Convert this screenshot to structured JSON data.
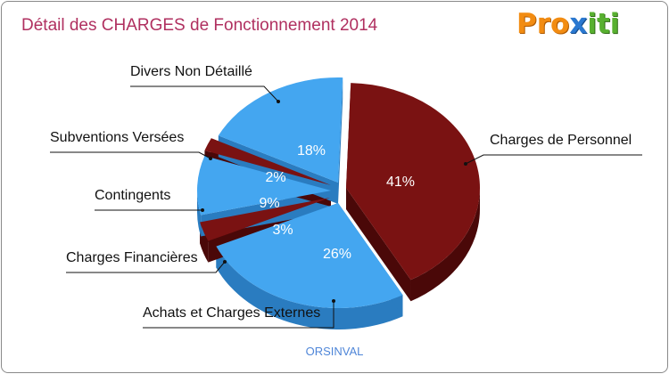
{
  "header": {
    "title": "Détail des CHARGES de Fonctionnement 2014"
  },
  "logo": {
    "p1": "Pro",
    "p2": "x",
    "p3": "iti"
  },
  "footer": {
    "commune": "ORSINVAL"
  },
  "chart_data": {
    "type": "pie",
    "title": "Détail des CHARGES de Fonctionnement 2014",
    "unit": "%",
    "slices": [
      {
        "label": "Charges de Personnel",
        "value": 41,
        "pct_label": "41%",
        "color": "#7a1212",
        "side": "#4a0808"
      },
      {
        "label": "Achats et Charges Externes",
        "value": 26,
        "pct_label": "26%",
        "color": "#44a6f0",
        "side": "#2a7cc0"
      },
      {
        "label": "Charges Financières",
        "value": 3,
        "pct_label": "3%",
        "color": "#7a1212",
        "side": "#4a0808"
      },
      {
        "label": "Contingents",
        "value": 9,
        "pct_label": "9%",
        "color": "#44a6f0",
        "side": "#2a7cc0"
      },
      {
        "label": "Subventions Versées",
        "value": 2,
        "pct_label": "2%",
        "color": "#7a1212",
        "side": "#4a0808"
      },
      {
        "label": "Divers Non Détaillé",
        "value": 18,
        "pct_label": "18%",
        "color": "#44a6f0",
        "side": "#2a7cc0"
      }
    ]
  }
}
